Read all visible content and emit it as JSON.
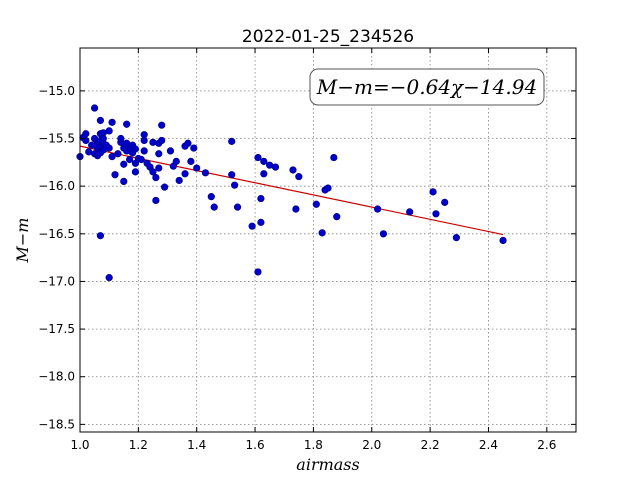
{
  "colors": {
    "points": "#0000cc",
    "points_edge": "#00007a",
    "fit_line": "#cc0000",
    "grid": "#808080",
    "frame": "#000000",
    "background": "#ffffff"
  },
  "chart_data": {
    "type": "scatter",
    "title": "2022-01-25_234526",
    "xlabel": "airmass",
    "ylabel": "M−m",
    "xlim": [
      1.0,
      2.7
    ],
    "ylim": [
      -15.0,
      -18.5
    ],
    "y_inverted": true,
    "x_plot_min": 1.0,
    "x_plot_max": 2.7,
    "y_plot_top": -14.55,
    "y_plot_bottom": -18.58,
    "grid": true,
    "x_ticks": [
      "1.0",
      "1.2",
      "1.4",
      "1.6",
      "1.8",
      "2.0",
      "2.2",
      "2.4",
      "2.6"
    ],
    "y_ticks": [
      "−15.0",
      "−15.5",
      "−16.0",
      "−16.5",
      "−17.0",
      "−17.5",
      "−18.0",
      "−18.5"
    ],
    "annotation": "M−m=−0.64χ−14.94",
    "fit": {
      "slope": -0.64,
      "intercept": -14.94,
      "x_range": [
        1.0,
        2.45
      ]
    },
    "points": [
      [
        1.0,
        -15.69
      ],
      [
        1.01,
        -15.49
      ],
      [
        1.02,
        -15.45
      ],
      [
        1.02,
        -15.52
      ],
      [
        1.03,
        -15.64
      ],
      [
        1.04,
        -15.57
      ],
      [
        1.05,
        -15.5
      ],
      [
        1.05,
        -15.66
      ],
      [
        1.05,
        -15.18
      ],
      [
        1.06,
        -15.55
      ],
      [
        1.06,
        -15.6
      ],
      [
        1.06,
        -15.68
      ],
      [
        1.07,
        -15.45
      ],
      [
        1.07,
        -15.52
      ],
      [
        1.07,
        -15.58
      ],
      [
        1.07,
        -15.65
      ],
      [
        1.07,
        -15.31
      ],
      [
        1.08,
        -15.5
      ],
      [
        1.08,
        -15.44
      ],
      [
        1.08,
        -15.62
      ],
      [
        1.08,
        -15.55
      ],
      [
        1.09,
        -15.57
      ],
      [
        1.1,
        -15.6
      ],
      [
        1.1,
        -15.42
      ],
      [
        1.11,
        -15.69
      ],
      [
        1.11,
        -15.33
      ],
      [
        1.12,
        -15.88
      ],
      [
        1.07,
        -16.52
      ],
      [
        1.1,
        -16.96
      ],
      [
        1.13,
        -15.66
      ],
      [
        1.14,
        -15.54
      ],
      [
        1.14,
        -15.5
      ],
      [
        1.15,
        -15.6
      ],
      [
        1.15,
        -15.77
      ],
      [
        1.15,
        -15.95
      ],
      [
        1.16,
        -15.35
      ],
      [
        1.16,
        -15.55
      ],
      [
        1.16,
        -15.63
      ],
      [
        1.17,
        -15.72
      ],
      [
        1.17,
        -15.61
      ],
      [
        1.18,
        -15.65
      ],
      [
        1.18,
        -15.57
      ],
      [
        1.19,
        -15.61
      ],
      [
        1.19,
        -15.85
      ],
      [
        1.19,
        -15.76
      ],
      [
        1.2,
        -15.71
      ],
      [
        1.21,
        -15.72
      ],
      [
        1.22,
        -15.46
      ],
      [
        1.22,
        -15.52
      ],
      [
        1.22,
        -15.63
      ],
      [
        1.23,
        -15.76
      ],
      [
        1.24,
        -15.8
      ],
      [
        1.25,
        -15.85
      ],
      [
        1.25,
        -15.54
      ],
      [
        1.26,
        -15.91
      ],
      [
        1.26,
        -16.15
      ],
      [
        1.27,
        -15.55
      ],
      [
        1.27,
        -15.66
      ],
      [
        1.27,
        -15.81
      ],
      [
        1.28,
        -15.36
      ],
      [
        1.28,
        -15.52
      ],
      [
        1.29,
        -16.01
      ],
      [
        1.31,
        -15.63
      ],
      [
        1.32,
        -15.79
      ],
      [
        1.33,
        -15.74
      ],
      [
        1.34,
        -15.94
      ],
      [
        1.36,
        -15.87
      ],
      [
        1.36,
        -15.58
      ],
      [
        1.37,
        -15.55
      ],
      [
        1.38,
        -15.74
      ],
      [
        1.39,
        -15.6
      ],
      [
        1.4,
        -15.81
      ],
      [
        1.43,
        -15.86
      ],
      [
        1.45,
        -16.11
      ],
      [
        1.46,
        -16.22
      ],
      [
        1.52,
        -15.53
      ],
      [
        1.52,
        -15.88
      ],
      [
        1.53,
        -15.99
      ],
      [
        1.54,
        -16.22
      ],
      [
        1.59,
        -16.42
      ],
      [
        1.61,
        -16.9
      ],
      [
        1.61,
        -15.7
      ],
      [
        1.62,
        -16.13
      ],
      [
        1.62,
        -16.38
      ],
      [
        1.63,
        -15.74
      ],
      [
        1.63,
        -15.87
      ],
      [
        1.65,
        -15.78
      ],
      [
        1.67,
        -15.8
      ],
      [
        1.73,
        -15.83
      ],
      [
        1.74,
        -16.24
      ],
      [
        1.75,
        -15.9
      ],
      [
        1.81,
        -16.19
      ],
      [
        1.83,
        -16.49
      ],
      [
        1.84,
        -16.04
      ],
      [
        1.85,
        -16.02
      ],
      [
        1.87,
        -15.7
      ],
      [
        1.88,
        -16.32
      ],
      [
        2.02,
        -16.24
      ],
      [
        2.04,
        -16.5
      ],
      [
        2.13,
        -16.27
      ],
      [
        2.21,
        -16.06
      ],
      [
        2.22,
        -16.29
      ],
      [
        2.25,
        -16.17
      ],
      [
        2.29,
        -16.54
      ],
      [
        2.45,
        -16.57
      ]
    ]
  }
}
